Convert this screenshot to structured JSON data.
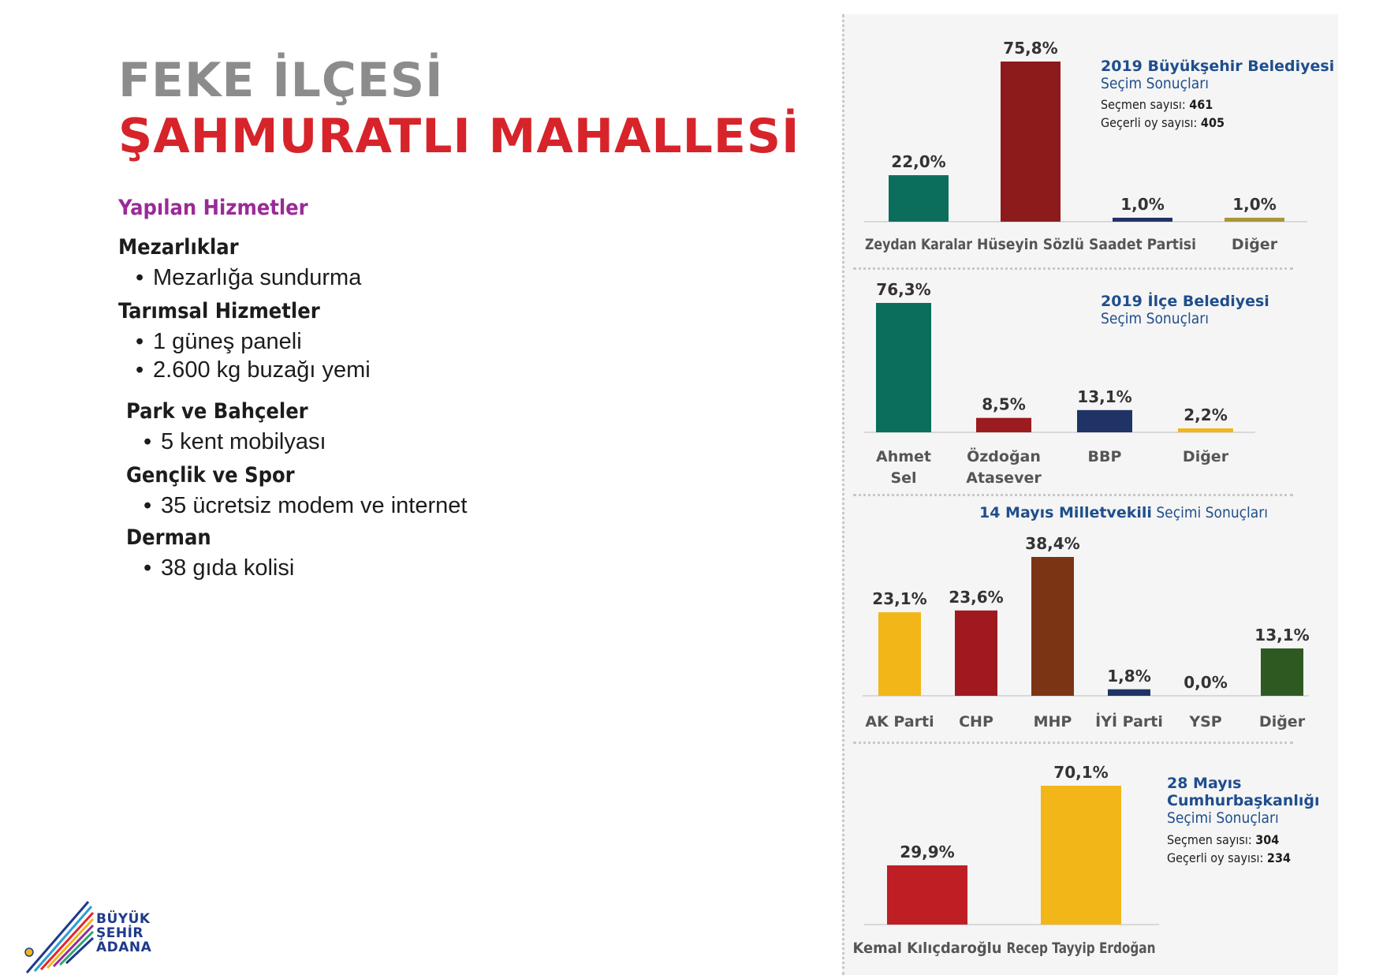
{
  "title": {
    "line1": "FEKE İLÇESİ",
    "line2": "ŞAHMURATLI MAHALLESİ"
  },
  "services": {
    "heading": "Yapılan Hizmetler",
    "groups": [
      {
        "name": "Mezarlıklar",
        "items": [
          "Mezarlığa sundurma"
        ]
      },
      {
        "name": "Tarımsal Hizmetler",
        "items": [
          "1 güneş paneli",
          "2.600 kg buzağı yemi"
        ]
      },
      {
        "name": "Park ve Bahçeler",
        "items": [
          "5 kent mobilyası"
        ]
      },
      {
        "name": "Gençlik ve Spor",
        "items": [
          "35 ücretsiz modem ve internet"
        ]
      },
      {
        "name": "Derman",
        "items": [
          "38 gıda kolisi"
        ]
      }
    ]
  },
  "logo": {
    "line1": "BÜYÜK",
    "line2": "ŞEHİR",
    "line3": "ADANA"
  },
  "charts": {
    "c1": {
      "title": "2019 Büyükşehir Belediyesi",
      "subtitle": "Seçim Sonuçları",
      "info1_label": "Seçmen sayısı: ",
      "info1_value": "461",
      "info2_label": "Geçerli oy sayısı: ",
      "info2_value": "405"
    },
    "c2": {
      "title": "2019 İlçe Belediyesi",
      "subtitle": "Seçim Sonuçları"
    },
    "c3": {
      "title": "14 Mayıs Milletvekili",
      "subtitle": " Seçimi Sonuçları"
    },
    "c4": {
      "title1": "28 Mayıs",
      "title2": "Cumhurbaşkanlığı",
      "subtitle": "Seçimi Sonuçları",
      "info1_label": "Seçmen sayısı: ",
      "info1_value": "304",
      "info2_label": "Geçerli oy sayısı: ",
      "info2_value": "234"
    }
  },
  "chart_data": [
    {
      "type": "bar",
      "title": "2019 Büyükşehir Belediyesi Seçim Sonuçları",
      "categories": [
        "Zeydan Karalar",
        "Hüseyin Sözlü",
        "Saadet Partisi",
        "Diğer"
      ],
      "values": [
        22.0,
        75.8,
        1.0,
        1.0
      ],
      "labels": [
        "22,0%",
        "75,8%",
        "1,0%",
        "1,0%"
      ],
      "colors": [
        "#0b6e5c",
        "#8e1b1b",
        "#1f3366",
        "#a8963a"
      ],
      "ylim": [
        0,
        75.8
      ]
    },
    {
      "type": "bar",
      "title": "2019 İlçe Belediyesi Seçim Sonuçları",
      "categories": [
        "Ahmet Sel",
        "Özdoğan Atasever",
        "BBP",
        "Diğer"
      ],
      "values": [
        76.3,
        8.5,
        13.1,
        2.2
      ],
      "labels": [
        "76,3%",
        "8,5%",
        "13,1%",
        "2,2%"
      ],
      "colors": [
        "#0b6e5c",
        "#9b1b1f",
        "#1f3366",
        "#f2b619"
      ],
      "ylim": [
        0,
        76.3
      ]
    },
    {
      "type": "bar",
      "title": "14 Mayıs Milletvekili Seçimi Sonuçları",
      "categories": [
        "AK Parti",
        "CHP",
        "MHP",
        "İYİ Parti",
        "YSP",
        "Diğer"
      ],
      "values": [
        23.1,
        23.6,
        38.4,
        1.8,
        0.0,
        13.1
      ],
      "labels": [
        "23,1%",
        "23,6%",
        "38,4%",
        "1,8%",
        "0,0%",
        "13,1%"
      ],
      "colors": [
        "#f2b619",
        "#a0191f",
        "#7b3414",
        "#1f3366",
        "#7a2a7a",
        "#2e5a22"
      ],
      "ylim": [
        0,
        38.4
      ]
    },
    {
      "type": "bar",
      "title": "28 Mayıs Cumhurbaşkanlığı Seçimi Sonuçları",
      "categories": [
        "Kemal Kılıçdaroğlu",
        "Recep Tayyip Erdoğan"
      ],
      "values": [
        29.9,
        70.1
      ],
      "labels": [
        "29,9%",
        "70,1%"
      ],
      "colors": [
        "#bf1e24",
        "#f2b619"
      ],
      "ylim": [
        0,
        70.1
      ]
    }
  ]
}
